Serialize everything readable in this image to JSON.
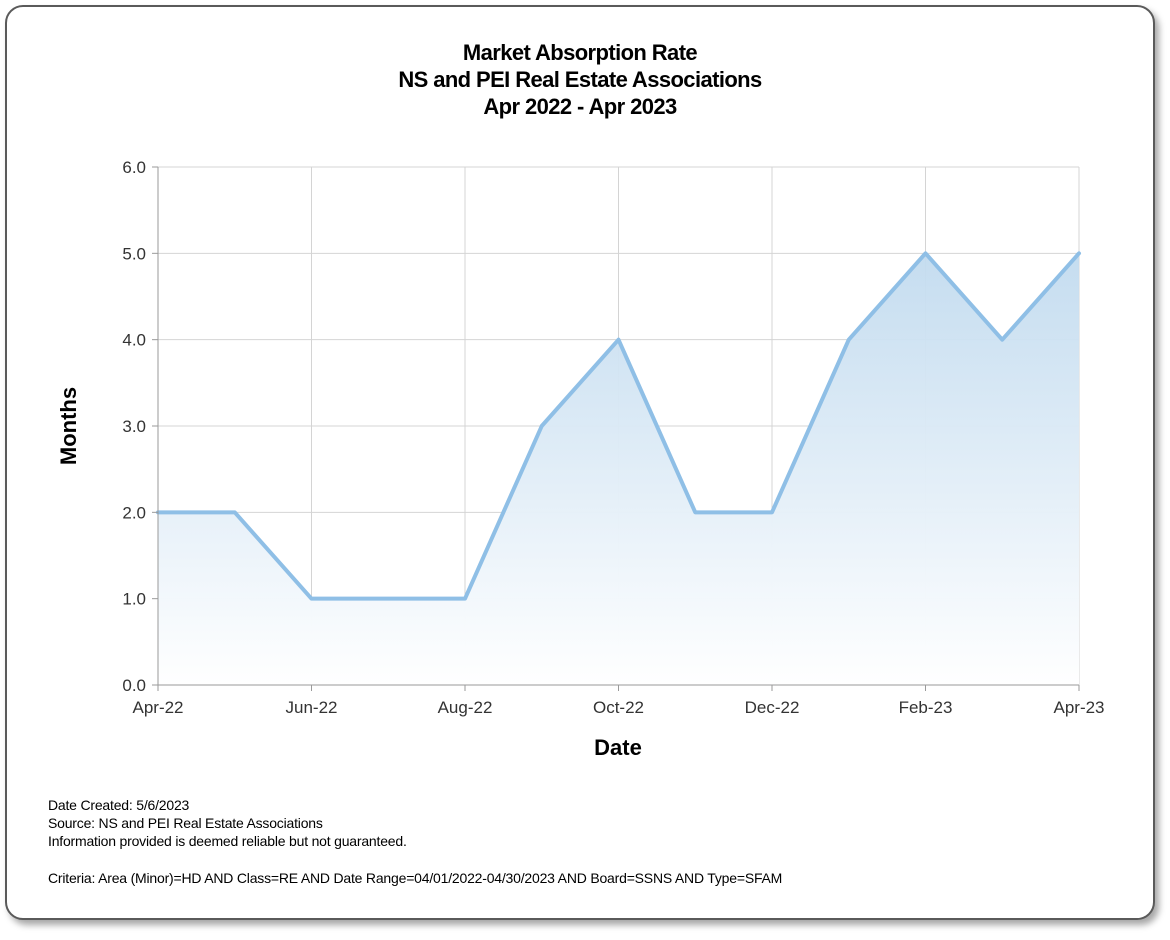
{
  "colors": {
    "line": "#8fbfe6",
    "fill_top": "#c2dbef",
    "fill_bottom": "#ffffff",
    "grid": "#d4d4d4",
    "axis": "#9a9a9a",
    "text": "#000000",
    "tick_text": "#333333"
  },
  "chart_data": {
    "type": "area",
    "title": "Market Absorption Rate",
    "subtitle": "NS and PEI Real Estate Associations",
    "date_range": "Apr 2022 - Apr 2023",
    "xlabel": "Date",
    "ylabel": "Months",
    "x": [
      "Apr-22",
      "May-22",
      "Jun-22",
      "Jul-22",
      "Aug-22",
      "Sep-22",
      "Oct-22",
      "Nov-22",
      "Dec-22",
      "Jan-23",
      "Feb-23",
      "Mar-23",
      "Apr-23"
    ],
    "values": [
      2.0,
      2.0,
      1.0,
      1.0,
      1.0,
      3.0,
      4.0,
      2.0,
      2.0,
      4.0,
      5.0,
      4.0,
      5.0
    ],
    "x_tick_labels": [
      "Apr-22",
      "Jun-22",
      "Aug-22",
      "Oct-22",
      "Dec-22",
      "Feb-23",
      "Apr-23"
    ],
    "y_tick_labels": [
      "0.0",
      "1.0",
      "2.0",
      "3.0",
      "4.0",
      "5.0",
      "6.0"
    ],
    "ylim": [
      0,
      6
    ],
    "grid": true,
    "legend": "none"
  },
  "footer": {
    "date_created": "Date Created: 5/6/2023",
    "source": "Source: NS and PEI Real Estate Associations",
    "disclaimer": "Information provided is deemed reliable but not guaranteed.",
    "criteria": "Criteria: Area (Minor)=HD AND Class=RE AND Date Range=04/01/2022-04/30/2023 AND Board=SSNS AND Type=SFAM"
  }
}
